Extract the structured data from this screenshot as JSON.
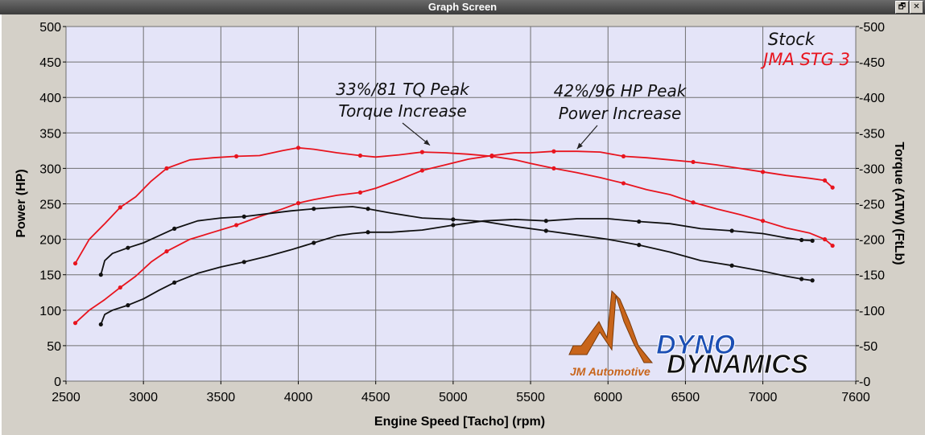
{
  "window": {
    "title": "Graph Screen",
    "restore_icon": "restore-icon",
    "close_icon": "close-icon",
    "restore_glyph": "🗗",
    "close_glyph": "✕"
  },
  "chart_data": {
    "type": "line",
    "xlabel": "Engine Speed [Tacho] (rpm)",
    "ylabel_left": "Power (HP)",
    "ylabel_right": "Torque (ATW) (FtLb)",
    "xlim": [
      2500,
      7600
    ],
    "ylim": [
      0,
      500
    ],
    "x_ticks": [
      2500,
      3000,
      3500,
      4000,
      4500,
      5000,
      5500,
      6000,
      6500,
      7000,
      7600
    ],
    "y_ticks": [
      0,
      50,
      100,
      150,
      200,
      250,
      300,
      350,
      400,
      450,
      500
    ],
    "grid": true,
    "plot_background": "#e4e4f8",
    "legend_position": "top-right",
    "legend": [
      {
        "label": "Stock",
        "color": "#111111"
      },
      {
        "label": "JMA STG 3",
        "color": "#e8141e"
      }
    ],
    "annotations": [
      {
        "lines": [
          "33%/81 TQ Peak",
          "Torque Increase"
        ],
        "points_to": {
          "x": 4850,
          "y": 328
        }
      },
      {
        "lines": [
          "42%/96 HP Peak",
          "Power Increase"
        ],
        "points_to": {
          "x": 5800,
          "y": 324
        }
      }
    ],
    "series": [
      {
        "name": "JMA STG 3",
        "quantity": "torque",
        "color": "#e8141e",
        "x": [
          2560,
          2650,
          2750,
          2850,
          2950,
          3050,
          3150,
          3300,
          3450,
          3600,
          3750,
          3900,
          4000,
          4100,
          4250,
          4400,
          4500,
          4650,
          4800,
          4950,
          5100,
          5250,
          5400,
          5500,
          5650,
          5800,
          5950,
          6100,
          6250,
          6400,
          6550,
          6700,
          6850,
          7000,
          7150,
          7300,
          7400,
          7450
        ],
        "y": [
          166,
          200,
          222,
          245,
          260,
          282,
          300,
          312,
          315,
          317,
          318,
          325,
          329,
          327,
          322,
          318,
          316,
          319,
          323,
          322,
          320,
          317,
          312,
          307,
          300,
          294,
          287,
          279,
          270,
          263,
          252,
          243,
          235,
          226,
          216,
          209,
          200,
          191
        ]
      },
      {
        "name": "JMA STG 3",
        "quantity": "power",
        "color": "#e8141e",
        "x": [
          2560,
          2650,
          2750,
          2850,
          2950,
          3050,
          3150,
          3300,
          3450,
          3600,
          3750,
          3900,
          4000,
          4100,
          4250,
          4400,
          4500,
          4650,
          4800,
          4950,
          5100,
          5250,
          5400,
          5500,
          5650,
          5800,
          5950,
          6100,
          6250,
          6400,
          6550,
          6700,
          6850,
          7000,
          7150,
          7300,
          7400,
          7450
        ],
        "y": [
          82,
          100,
          115,
          132,
          148,
          168,
          183,
          200,
          210,
          220,
          232,
          243,
          251,
          256,
          262,
          266,
          272,
          284,
          297,
          305,
          313,
          318,
          322,
          322,
          324,
          324,
          323,
          317,
          315,
          312,
          309,
          305,
          300,
          295,
          290,
          286,
          283,
          273
        ]
      },
      {
        "name": "Stock",
        "quantity": "torque",
        "color": "#111111",
        "x": [
          2725,
          2750,
          2800,
          2900,
          3000,
          3100,
          3200,
          3350,
          3500,
          3650,
          3800,
          3950,
          4100,
          4250,
          4350,
          4450,
          4600,
          4800,
          5000,
          5200,
          5400,
          5600,
          5800,
          6000,
          6200,
          6400,
          6600,
          6800,
          7000,
          7150,
          7250,
          7320
        ],
        "y": [
          150,
          170,
          180,
          188,
          195,
          205,
          215,
          226,
          230,
          232,
          236,
          240,
          243,
          245,
          246,
          243,
          237,
          230,
          228,
          225,
          218,
          212,
          206,
          200,
          192,
          182,
          170,
          163,
          155,
          148,
          144,
          142
        ]
      },
      {
        "name": "Stock",
        "quantity": "power",
        "color": "#111111",
        "x": [
          2725,
          2750,
          2800,
          2900,
          3000,
          3100,
          3200,
          3350,
          3500,
          3650,
          3800,
          3950,
          4100,
          4250,
          4350,
          4450,
          4600,
          4800,
          5000,
          5200,
          5400,
          5600,
          5800,
          6000,
          6200,
          6400,
          6600,
          6800,
          7000,
          7150,
          7250,
          7320
        ],
        "y": [
          80,
          94,
          100,
          107,
          116,
          128,
          139,
          152,
          161,
          168,
          176,
          185,
          195,
          205,
          208,
          210,
          210,
          213,
          220,
          226,
          228,
          226,
          229,
          229,
          225,
          222,
          215,
          212,
          208,
          202,
          199,
          198
        ]
      }
    ]
  },
  "logo": {
    "company": "JM Automotive",
    "brand_part1": "DYNO",
    "brand_part2": "DYNAMICS",
    "color_orange": "#c8651b",
    "color_blue": "#1c4fb4",
    "color_black": "#111111"
  }
}
